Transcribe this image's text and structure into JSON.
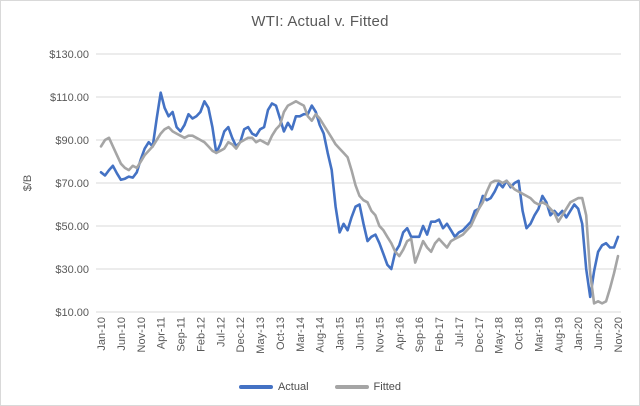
{
  "chart_data": {
    "type": "line",
    "title": "WTI: Actual v. Fitted",
    "xlabel": "",
    "ylabel": "$/B",
    "ylim": [
      10,
      130
    ],
    "y_tick_step": 20,
    "y_ticks": [
      "$130.00",
      "$110.00",
      "$90.00",
      "$70.00",
      "$50.00",
      "$30.00",
      "$10.00"
    ],
    "x_unit": "month",
    "x_start": "Jan-10",
    "x_end": "Nov-20",
    "x_tick_interval_months": 5,
    "x_tick_labels": [
      "Jan-10",
      "Jun-10",
      "Nov-10",
      "Apr-11",
      "Sep-11",
      "Feb-12",
      "Jul-12",
      "Dec-12",
      "May-13",
      "Oct-13",
      "Mar-14",
      "Aug-14",
      "Jan-15",
      "Jun-15",
      "Nov-15",
      "Apr-16",
      "Sep-16",
      "Feb-17",
      "Jul-17",
      "Dec-17",
      "May-18",
      "Oct-18",
      "Mar-19",
      "Aug-19",
      "Jan-20",
      "Jun-20",
      "Nov-20"
    ],
    "grid": "horizontal",
    "legend_position": "bottom",
    "colors": {
      "actual": "#4472C4",
      "fitted": "#A5A5A5",
      "text": "#595959",
      "gridline": "#D9D9D9"
    },
    "series": [
      {
        "name": "Actual",
        "color_key": "actual",
        "values": [
          75,
          73.5,
          76,
          78,
          74.5,
          71.5,
          72,
          73,
          72.5,
          75,
          81,
          86,
          89,
          87,
          100,
          112,
          105,
          101,
          103,
          96,
          94,
          97,
          102,
          100,
          101,
          103,
          108,
          105,
          96,
          84,
          88,
          94,
          96,
          91,
          87,
          89,
          95,
          96,
          93,
          92,
          95,
          96,
          104,
          107,
          106,
          100,
          94,
          98,
          95,
          101,
          101,
          102,
          102,
          106,
          103,
          97,
          93,
          84,
          76,
          59,
          47,
          51,
          48,
          54,
          59,
          60,
          51,
          43,
          45,
          46,
          42,
          37,
          32,
          30,
          38,
          41,
          47,
          49,
          45,
          45,
          45,
          50,
          46,
          52,
          52,
          53,
          49,
          51,
          48,
          45,
          47,
          48,
          50,
          52,
          57,
          58,
          64,
          62,
          63,
          66,
          70,
          68,
          71,
          68,
          70,
          71,
          57,
          49,
          51,
          55,
          58,
          64,
          61,
          55,
          57,
          55,
          57,
          54,
          57,
          60,
          58,
          51,
          30,
          17,
          29,
          38,
          41,
          42,
          40,
          40,
          45
        ]
      },
      {
        "name": "Fitted",
        "color_key": "fitted",
        "values": [
          87,
          90,
          91,
          87,
          83,
          79,
          77,
          76,
          78,
          77,
          80,
          83,
          85,
          87,
          90,
          93,
          95,
          96,
          94,
          93,
          92,
          91,
          92,
          92,
          91,
          90,
          89,
          87,
          85,
          84,
          85,
          86,
          89,
          88,
          86,
          89,
          90,
          91,
          91,
          89,
          90,
          89,
          88,
          92,
          95,
          97,
          103,
          106,
          107,
          108,
          107,
          106,
          101,
          99,
          102,
          100,
          97,
          94,
          91,
          88,
          86,
          84,
          82,
          76,
          69,
          64,
          62,
          61,
          57,
          55,
          50,
          48,
          45,
          42,
          38,
          36,
          39,
          43,
          44,
          33,
          38,
          43,
          40,
          38,
          42,
          44,
          42,
          40,
          43,
          44,
          45,
          46,
          48,
          50,
          54,
          58,
          61,
          66,
          70,
          71,
          71,
          70,
          71,
          69,
          67,
          66,
          65,
          64,
          63,
          61,
          60,
          61,
          60,
          58,
          56,
          52,
          55,
          58,
          61,
          62,
          63,
          63,
          55,
          28,
          14,
          15,
          14,
          15,
          21,
          28,
          36
        ]
      }
    ]
  }
}
